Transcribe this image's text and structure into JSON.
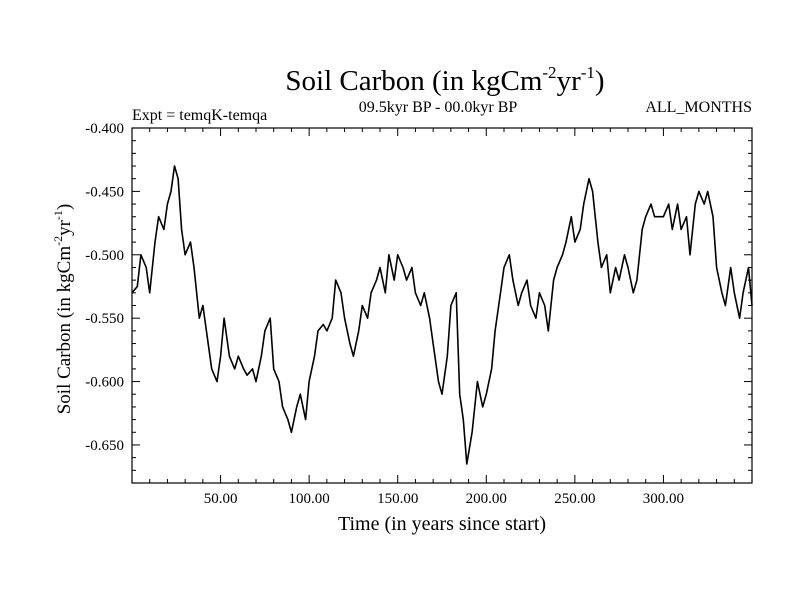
{
  "chart_data": {
    "type": "line",
    "title": "Soil Carbon (in kgCm",
    "title_sup1": "-2",
    "title_mid": "yr",
    "title_sup2": "-1",
    "title_end": ")",
    "subtitle_left": "Expt = temqK-temqa",
    "subtitle_center": "09.5kyr BP - 00.0kyr BP",
    "subtitle_right": "ALL_MONTHS",
    "xlabel": "Time (in years since start)",
    "ylabel": "Soil Carbon (in kgCm",
    "ylabel_sup1": "-2",
    "ylabel_mid": "yr",
    "ylabel_sup2": "-1",
    "ylabel_end": ")",
    "xlim": [
      0,
      350
    ],
    "ylim": [
      -0.68,
      -0.4
    ],
    "x_ticks": [
      50,
      100,
      150,
      200,
      250,
      300
    ],
    "x_tick_labels": [
      "50.00",
      "100.00",
      "150.00",
      "200.00",
      "250.00",
      "300.00"
    ],
    "y_ticks": [
      -0.4,
      -0.45,
      -0.5,
      -0.55,
      -0.6,
      -0.65
    ],
    "y_tick_labels": [
      "-0.400",
      "-0.450",
      "-0.500",
      "-0.550",
      "-0.600",
      "-0.650"
    ],
    "grid": false,
    "line_color": "#000000",
    "series": [
      {
        "x": [
          0,
          3,
          5,
          8,
          10,
          13,
          15,
          18,
          20,
          22,
          24,
          26,
          28,
          30,
          33,
          35,
          38,
          40,
          42,
          45,
          48,
          50,
          52,
          55,
          58,
          60,
          63,
          65,
          68,
          70,
          73,
          75,
          78,
          80,
          83,
          85,
          88,
          90,
          93,
          95,
          98,
          100,
          103,
          105,
          108,
          110,
          113,
          115,
          118,
          120,
          123,
          125,
          128,
          130,
          133,
          135,
          138,
          140,
          143,
          145,
          148,
          150,
          153,
          155,
          158,
          160,
          163,
          165,
          168,
          170,
          173,
          175,
          178,
          180,
          183,
          185,
          187,
          189,
          192,
          195,
          198,
          200,
          203,
          205,
          208,
          210,
          213,
          215,
          218,
          220,
          223,
          225,
          228,
          230,
          233,
          235,
          238,
          240,
          243,
          245,
          248,
          250,
          253,
          255,
          258,
          260,
          263,
          265,
          268,
          270,
          273,
          275,
          278,
          280,
          283,
          285,
          288,
          290,
          293,
          295,
          298,
          300,
          303,
          305,
          308,
          310,
          313,
          315,
          318,
          320,
          323,
          325,
          328,
          330,
          333,
          335,
          338,
          340,
          343,
          345,
          348,
          350
        ],
        "y": [
          -0.53,
          -0.525,
          -0.5,
          -0.51,
          -0.53,
          -0.49,
          -0.47,
          -0.48,
          -0.46,
          -0.45,
          -0.43,
          -0.44,
          -0.48,
          -0.5,
          -0.49,
          -0.51,
          -0.55,
          -0.54,
          -0.56,
          -0.59,
          -0.6,
          -0.58,
          -0.55,
          -0.58,
          -0.59,
          -0.58,
          -0.59,
          -0.595,
          -0.59,
          -0.6,
          -0.58,
          -0.56,
          -0.55,
          -0.59,
          -0.6,
          -0.62,
          -0.63,
          -0.64,
          -0.62,
          -0.61,
          -0.63,
          -0.6,
          -0.58,
          -0.56,
          -0.555,
          -0.56,
          -0.55,
          -0.52,
          -0.53,
          -0.55,
          -0.57,
          -0.58,
          -0.56,
          -0.54,
          -0.55,
          -0.53,
          -0.52,
          -0.51,
          -0.53,
          -0.5,
          -0.52,
          -0.5,
          -0.51,
          -0.52,
          -0.51,
          -0.53,
          -0.54,
          -0.53,
          -0.55,
          -0.57,
          -0.6,
          -0.61,
          -0.58,
          -0.54,
          -0.53,
          -0.61,
          -0.63,
          -0.665,
          -0.64,
          -0.6,
          -0.62,
          -0.61,
          -0.59,
          -0.56,
          -0.53,
          -0.51,
          -0.5,
          -0.52,
          -0.54,
          -0.53,
          -0.52,
          -0.54,
          -0.55,
          -0.53,
          -0.54,
          -0.56,
          -0.52,
          -0.51,
          -0.5,
          -0.49,
          -0.47,
          -0.49,
          -0.48,
          -0.46,
          -0.44,
          -0.45,
          -0.49,
          -0.51,
          -0.5,
          -0.53,
          -0.51,
          -0.52,
          -0.5,
          -0.51,
          -0.53,
          -0.52,
          -0.48,
          -0.47,
          -0.46,
          -0.47,
          -0.47,
          -0.47,
          -0.46,
          -0.48,
          -0.46,
          -0.48,
          -0.47,
          -0.5,
          -0.46,
          -0.45,
          -0.46,
          -0.45,
          -0.47,
          -0.51,
          -0.53,
          -0.54,
          -0.51,
          -0.53,
          -0.55,
          -0.53,
          -0.51,
          -0.54
        ]
      }
    ]
  }
}
